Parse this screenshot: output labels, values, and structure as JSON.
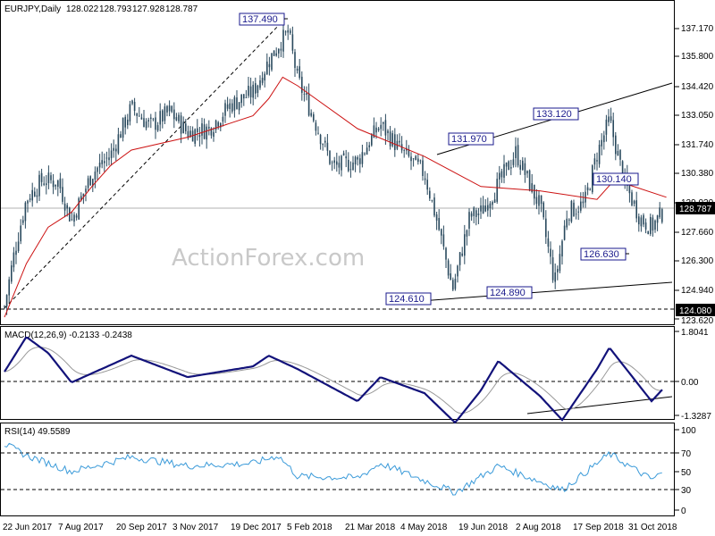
{
  "header": {
    "symbol": "EURJPY,Daily",
    "open": "128.022",
    "high": "128.793",
    "low": "127.928",
    "close": "128.787"
  },
  "watermark": "ActionForex.com",
  "colors": {
    "bars": "#2a4a5e",
    "ma": "#cc1111",
    "macd": "#12127a",
    "macd_signal": "#999999",
    "rsi": "#3a9ad9",
    "label_border": "#1a1a8c",
    "label_text": "#1a1a8c"
  },
  "panels": {
    "price": {
      "y_ticks": [
        "137.170",
        "135.800",
        "134.420",
        "133.050",
        "131.740",
        "130.380",
        "129.020",
        "127.660",
        "126.300",
        "124.940",
        "123.620"
      ],
      "current_price": "128.787",
      "level_124080": "124.080"
    },
    "macd": {
      "title": "MACD(12,26,9) -0.2133 -0.2438",
      "y_ticks": [
        "1.8041",
        "0.00",
        "-1.3287"
      ]
    },
    "rsi": {
      "title": "RSI(14) 49.5589",
      "y_ticks": [
        "100",
        "70",
        "50",
        "30",
        "0"
      ]
    }
  },
  "x_axis": {
    "ticks": [
      "22 Jun 2017",
      "7 Aug 2017",
      "20 Sep 2017",
      "3 Nov 2017",
      "19 Dec 2017",
      "5 Feb 2018",
      "21 Mar 2018",
      "4 May 2018",
      "19 Jun 2018",
      "2 Aug 2018",
      "17 Sep 2018",
      "31 Oct 2018"
    ]
  },
  "annotations": {
    "a1": "137.490",
    "a2": "133.120",
    "a3": "131.970",
    "a4": "130.140",
    "a5": "126.630",
    "a6": "124.610",
    "a7": "124.890",
    "a8": "124.080"
  },
  "chart_data": [
    {
      "type": "candlestick",
      "title": "EURJPY,Daily",
      "x_ticks": [
        "22 Jun 2017",
        "7 Aug 2017",
        "20 Sep 2017",
        "3 Nov 2017",
        "19 Dec 2017",
        "5 Feb 2018",
        "21 Mar 2018",
        "4 May 2018",
        "19 Jun 2018",
        "2 Aug 2018",
        "17 Sep 2018",
        "31 Oct 2018"
      ],
      "ylim": [
        123.5,
        137.8
      ],
      "close_path": [
        [
          "22 Jun 2017",
          124.2
        ],
        [
          "29 Jun 2017",
          126.8
        ],
        [
          "7 Jul 2017",
          129.2
        ],
        [
          "18 Jul 2017",
          130.1
        ],
        [
          "29 Jul 2017",
          130.0
        ],
        [
          "7 Aug 2017",
          128.2
        ],
        [
          "22 Aug 2017",
          130.4
        ],
        [
          "5 Sep 2017",
          131.3
        ],
        [
          "20 Sep 2017",
          133.5
        ],
        [
          "5 Oct 2017",
          132.6
        ],
        [
          "20 Oct 2017",
          133.3
        ],
        [
          "3 Nov 2017",
          132.3
        ],
        [
          "18 Nov 2017",
          132.5
        ],
        [
          "3 Dec 2017",
          133.6
        ],
        [
          "19 Dec 2017",
          134.2
        ],
        [
          "3 Jan 2018",
          135.5
        ],
        [
          "15 Jan 2018",
          136.4
        ],
        [
          "26 Jan 2018",
          137.0
        ],
        [
          "5 Feb 2018",
          134.8
        ],
        [
          "16 Feb 2018",
          133.1
        ],
        [
          "3 Mar 2018",
          130.7
        ],
        [
          "21 Mar 2018",
          131.0
        ],
        [
          "5 Apr 2018",
          132.7
        ],
        [
          "18 Apr 2018",
          131.5
        ],
        [
          "4 May 2018",
          130.4
        ],
        [
          "15 May 2018",
          128.0
        ],
        [
          "27 May 2018",
          125.0
        ],
        [
          "10 Jun 2018",
          128.4
        ],
        [
          "19 Jun 2018",
          128.6
        ],
        [
          "2 Jul 2018",
          129.9
        ],
        [
          "15 Jul 2018",
          131.4
        ],
        [
          "29 Jul 2018",
          129.4
        ],
        [
          "2 Aug 2018",
          128.9
        ],
        [
          "14 Aug 2018",
          125.3
        ],
        [
          "24 Aug 2018",
          128.6
        ],
        [
          "7 Sep 2018",
          129.0
        ],
        [
          "17 Sep 2018",
          131.3
        ],
        [
          "27 Sep 2018",
          132.9
        ],
        [
          "9 Oct 2018",
          130.0
        ],
        [
          "22 Oct 2018",
          128.3
        ],
        [
          "31 Oct 2018",
          127.9
        ],
        [
          "12 Nov 2018",
          128.8
        ]
      ],
      "ma_path": [
        [
          "22 Jun 2017",
          123.7
        ],
        [
          "7 Jul 2017",
          126.2
        ],
        [
          "22 Jul 2017",
          127.9
        ],
        [
          "7 Aug 2017",
          128.6
        ],
        [
          "22 Aug 2017",
          129.8
        ],
        [
          "5 Sep 2017",
          130.8
        ],
        [
          "20 Sep 2017",
          131.5
        ],
        [
          "3 Nov 2017",
          132.1
        ],
        [
          "19 Dec 2017",
          133.1
        ],
        [
          "5 Jan 2018",
          133.9
        ],
        [
          "20 Jan 2018",
          134.9
        ],
        [
          "5 Feb 2018",
          134.5
        ],
        [
          "21 Mar 2018",
          132.5
        ],
        [
          "4 May 2018",
          131.2
        ],
        [
          "19 Jun 2018",
          129.8
        ],
        [
          "2 Aug 2018",
          129.6
        ],
        [
          "17 Sep 2018",
          129.2
        ],
        [
          "1 Oct 2018",
          130.1
        ],
        [
          "12 Nov 2018",
          129.3
        ]
      ],
      "annotations": [
        {
          "date": "15 Jan 2018",
          "value": 137.49,
          "label": "137.490"
        },
        {
          "date": "27 Sep 2018",
          "value": 133.12,
          "label": "133.120"
        },
        {
          "date": "19 Jun 2018",
          "value": 131.97,
          "label": "131.970"
        },
        {
          "date": "15 Oct 2018",
          "value": 130.14,
          "label": "130.140"
        },
        {
          "date": "25 Oct 2018",
          "value": 126.63,
          "label": "126.630"
        },
        {
          "date": "29 May 2018",
          "value": 124.61,
          "label": "124.610"
        },
        {
          "date": "20 Aug 2018",
          "value": 124.89,
          "label": "124.890"
        },
        {
          "date": "22 Jun 2017",
          "value": 124.08,
          "label": "124.080"
        }
      ],
      "reference_lines": [
        {
          "type": "horizontal",
          "value": 128.787,
          "label": "128.787"
        },
        {
          "type": "horizontal",
          "value": 124.08,
          "label": "124.080",
          "style": "dashed"
        }
      ]
    },
    {
      "type": "line",
      "title": "MACD(12,26,9) -0.2133 -0.2438",
      "ylim": [
        -1.6,
        2.1
      ],
      "y_ticks": [
        1.8041,
        0.0,
        -1.3287
      ],
      "macd_path": [
        [
          "22 Jun 2017",
          0.3
        ],
        [
          "7 Jul 2017",
          1.6
        ],
        [
          "22 Jul 2017",
          1.0
        ],
        [
          "7 Aug 2017",
          -0.1
        ],
        [
          "20 Sep 2017",
          0.9
        ],
        [
          "3 Nov 2017",
          0.1
        ],
        [
          "19 Dec 2017",
          0.5
        ],
        [
          "5 Jan 2018",
          0.9
        ],
        [
          "5 Feb 2018",
          0.4
        ],
        [
          "21 Mar 2018",
          -0.8
        ],
        [
          "5 Apr 2018",
          0.1
        ],
        [
          "4 May 2018",
          -0.5
        ],
        [
          "29 May 2018",
          -1.6
        ],
        [
          "19 Jun 2018",
          -0.4
        ],
        [
          "2 Jul 2018",
          0.7
        ],
        [
          "2 Aug 2018",
          -0.6
        ],
        [
          "20 Aug 2018",
          -1.5
        ],
        [
          "17 Sep 2018",
          0.4
        ],
        [
          "27 Sep 2018",
          1.2
        ],
        [
          "31 Oct 2018",
          -0.8
        ],
        [
          "12 Nov 2018",
          -0.2
        ]
      ]
    },
    {
      "type": "line",
      "title": "RSI(14) 49.5589",
      "ylim": [
        0,
        100
      ],
      "y_ticks": [
        100,
        70,
        50,
        30,
        0
      ],
      "rsi_path": [
        [
          "22 Jun 2017",
          82
        ],
        [
          "7 Jul 2017",
          68
        ],
        [
          "7 Aug 2017",
          48
        ],
        [
          "20 Sep 2017",
          66
        ],
        [
          "3 Nov 2017",
          55
        ],
        [
          "19 Dec 2017",
          58
        ],
        [
          "15 Jan 2018",
          68
        ],
        [
          "5 Feb 2018",
          42
        ],
        [
          "21 Mar 2018",
          40
        ],
        [
          "5 Apr 2018",
          58
        ],
        [
          "29 May 2018",
          22
        ],
        [
          "2 Jul 2018",
          55
        ],
        [
          "20 Aug 2018",
          25
        ],
        [
          "17 Sep 2018",
          58
        ],
        [
          "27 Sep 2018",
          70
        ],
        [
          "31 Oct 2018",
          38
        ],
        [
          "12 Nov 2018",
          49.56
        ]
      ]
    }
  ]
}
